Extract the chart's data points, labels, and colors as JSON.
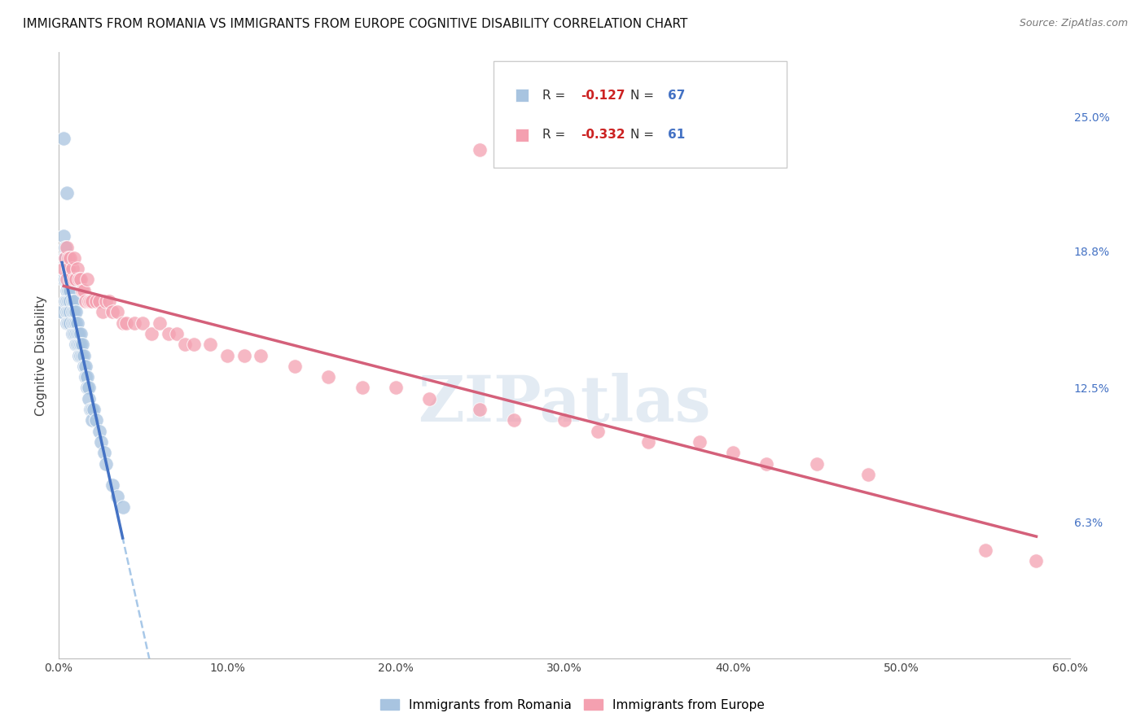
{
  "title": "IMMIGRANTS FROM ROMANIA VS IMMIGRANTS FROM EUROPE COGNITIVE DISABILITY CORRELATION CHART",
  "source": "Source: ZipAtlas.com",
  "ylabel": "Cognitive Disability",
  "x_tick_labels": [
    "0.0%",
    "10.0%",
    "20.0%",
    "30.0%",
    "40.0%",
    "50.0%",
    "60.0%"
  ],
  "x_tick_positions": [
    0.0,
    0.1,
    0.2,
    0.3,
    0.4,
    0.5,
    0.6
  ],
  "y_tick_labels_right": [
    "25.0%",
    "18.8%",
    "12.5%",
    "6.3%"
  ],
  "y_tick_positions_right": [
    0.25,
    0.188,
    0.125,
    0.063
  ],
  "xlim": [
    0.0,
    0.6
  ],
  "ylim": [
    0.0,
    0.28
  ],
  "romania_R": "-0.127",
  "romania_N": "67",
  "europe_R": "-0.332",
  "europe_N": "61",
  "romania_color": "#a8c4e0",
  "europe_color": "#f4a0b0",
  "romania_line_color": "#4472c4",
  "europe_line_color": "#d4607a",
  "trendline_dashed_color": "#a8c8e8",
  "background_color": "#ffffff",
  "grid_color": "#d8d8d8",
  "title_fontsize": 11,
  "watermark_text": "ZIPatlas",
  "romania_x": [
    0.002,
    0.003,
    0.003,
    0.003,
    0.004,
    0.004,
    0.004,
    0.004,
    0.005,
    0.005,
    0.005,
    0.005,
    0.005,
    0.006,
    0.006,
    0.006,
    0.006,
    0.006,
    0.007,
    0.007,
    0.007,
    0.007,
    0.008,
    0.008,
    0.008,
    0.008,
    0.009,
    0.009,
    0.009,
    0.009,
    0.01,
    0.01,
    0.01,
    0.01,
    0.011,
    0.011,
    0.011,
    0.012,
    0.012,
    0.012,
    0.013,
    0.013,
    0.013,
    0.014,
    0.014,
    0.015,
    0.015,
    0.016,
    0.016,
    0.017,
    0.017,
    0.018,
    0.018,
    0.019,
    0.02,
    0.02,
    0.021,
    0.022,
    0.024,
    0.025,
    0.027,
    0.028,
    0.032,
    0.035,
    0.038,
    0.003,
    0.005
  ],
  "romania_y": [
    0.16,
    0.175,
    0.185,
    0.195,
    0.165,
    0.175,
    0.185,
    0.19,
    0.17,
    0.175,
    0.165,
    0.16,
    0.155,
    0.175,
    0.17,
    0.165,
    0.16,
    0.155,
    0.17,
    0.165,
    0.16,
    0.155,
    0.165,
    0.16,
    0.155,
    0.15,
    0.165,
    0.16,
    0.155,
    0.15,
    0.16,
    0.155,
    0.15,
    0.145,
    0.155,
    0.15,
    0.145,
    0.15,
    0.145,
    0.14,
    0.15,
    0.145,
    0.14,
    0.145,
    0.14,
    0.14,
    0.135,
    0.135,
    0.13,
    0.13,
    0.125,
    0.125,
    0.12,
    0.115,
    0.115,
    0.11,
    0.115,
    0.11,
    0.105,
    0.1,
    0.095,
    0.09,
    0.08,
    0.075,
    0.07,
    0.24,
    0.215
  ],
  "europe_x": [
    0.003,
    0.004,
    0.005,
    0.005,
    0.006,
    0.006,
    0.007,
    0.007,
    0.008,
    0.009,
    0.009,
    0.01,
    0.011,
    0.012,
    0.013,
    0.014,
    0.015,
    0.016,
    0.017,
    0.018,
    0.019,
    0.02,
    0.022,
    0.024,
    0.026,
    0.028,
    0.03,
    0.032,
    0.035,
    0.038,
    0.04,
    0.045,
    0.05,
    0.055,
    0.06,
    0.065,
    0.07,
    0.075,
    0.08,
    0.09,
    0.1,
    0.11,
    0.12,
    0.14,
    0.16,
    0.18,
    0.2,
    0.22,
    0.25,
    0.27,
    0.3,
    0.32,
    0.35,
    0.38,
    0.4,
    0.42,
    0.45,
    0.48,
    0.55,
    0.58,
    0.25
  ],
  "europe_y": [
    0.18,
    0.185,
    0.19,
    0.175,
    0.185,
    0.18,
    0.185,
    0.175,
    0.18,
    0.185,
    0.175,
    0.175,
    0.18,
    0.175,
    0.175,
    0.17,
    0.17,
    0.165,
    0.175,
    0.165,
    0.165,
    0.165,
    0.165,
    0.165,
    0.16,
    0.165,
    0.165,
    0.16,
    0.16,
    0.155,
    0.155,
    0.155,
    0.155,
    0.15,
    0.155,
    0.15,
    0.15,
    0.145,
    0.145,
    0.145,
    0.14,
    0.14,
    0.14,
    0.135,
    0.13,
    0.125,
    0.125,
    0.12,
    0.115,
    0.11,
    0.11,
    0.105,
    0.1,
    0.1,
    0.095,
    0.09,
    0.09,
    0.085,
    0.05,
    0.045,
    0.235
  ]
}
